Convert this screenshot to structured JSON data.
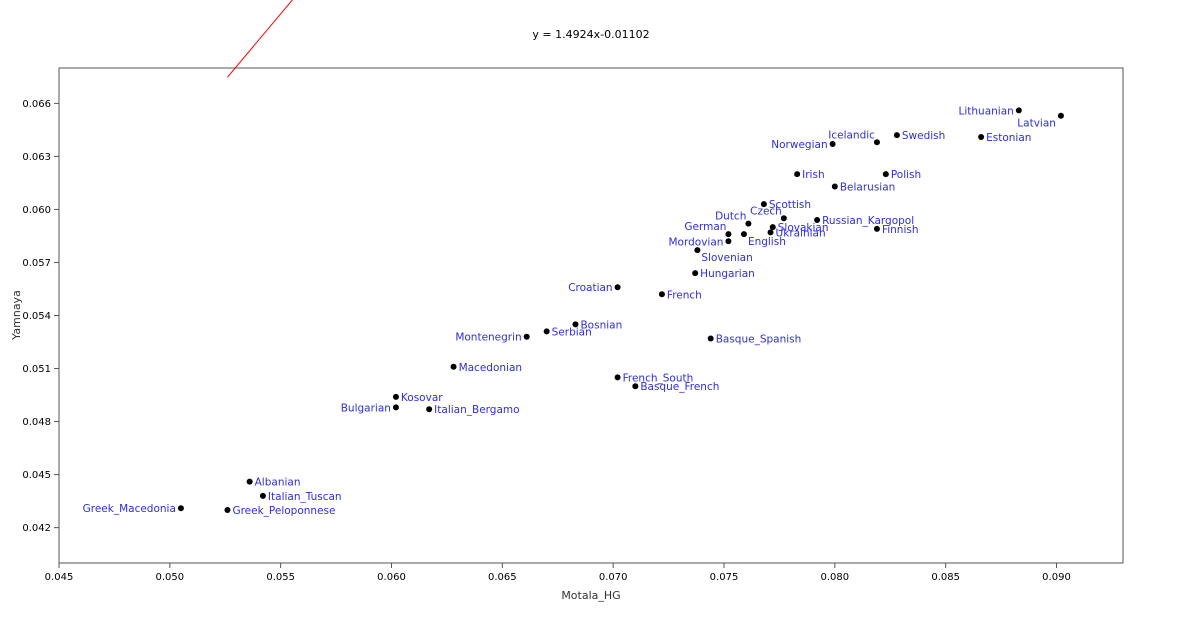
{
  "chart_data": {
    "type": "scatter",
    "title": "y = 1.4924x-0.01102",
    "xlabel": "Motala_HG",
    "ylabel": "Yamnaya",
    "xlim": [
      0.045,
      0.093
    ],
    "ylim": [
      0.04,
      0.068
    ],
    "xticks": [
      "0.045",
      "0.050",
      "0.055",
      "0.060",
      "0.065",
      "0.070",
      "0.075",
      "0.080",
      "0.085",
      "0.090"
    ],
    "yticks": [
      "0.042",
      "0.045",
      "0.048",
      "0.051",
      "0.054",
      "0.057",
      "0.060",
      "0.063",
      "0.066"
    ],
    "grid": false,
    "trendline": {
      "slope": 1.4924,
      "intercept": -0.01102,
      "x_range": [
        0.0526,
        0.0883
      ],
      "color": "#ff0000"
    },
    "marker_color": "#000000",
    "label_color": "#2e2ee0",
    "points": [
      {
        "label": "Lithuanian",
        "x": 0.0883,
        "y": 0.0656,
        "pos": "left"
      },
      {
        "label": "Latvian",
        "x": 0.0902,
        "y": 0.0653,
        "pos": "below-left"
      },
      {
        "label": "Estonian",
        "x": 0.0866,
        "y": 0.0641,
        "pos": "right"
      },
      {
        "label": "Swedish",
        "x": 0.0828,
        "y": 0.0642,
        "pos": "right"
      },
      {
        "label": "Icelandic",
        "x": 0.0819,
        "y": 0.0638,
        "pos": "above-left"
      },
      {
        "label": "Norwegian",
        "x": 0.0799,
        "y": 0.0637,
        "pos": "left"
      },
      {
        "label": "Irish",
        "x": 0.0783,
        "y": 0.062,
        "pos": "right"
      },
      {
        "label": "Polish",
        "x": 0.0823,
        "y": 0.062,
        "pos": "right"
      },
      {
        "label": "Belarusian",
        "x": 0.08,
        "y": 0.0613,
        "pos": "right"
      },
      {
        "label": "Scottish",
        "x": 0.0768,
        "y": 0.0603,
        "pos": "right"
      },
      {
        "label": "Czech",
        "x": 0.0777,
        "y": 0.0595,
        "pos": "above-left"
      },
      {
        "label": "Dutch",
        "x": 0.0761,
        "y": 0.0592,
        "pos": "above-left"
      },
      {
        "label": "Russian_Kargopol",
        "x": 0.0792,
        "y": 0.0594,
        "pos": "right"
      },
      {
        "label": "Slovakian",
        "x": 0.0772,
        "y": 0.059,
        "pos": "right"
      },
      {
        "label": "Finnish",
        "x": 0.0819,
        "y": 0.0589,
        "pos": "right"
      },
      {
        "label": "German",
        "x": 0.0752,
        "y": 0.0586,
        "pos": "above-left"
      },
      {
        "label": "Ukrainian",
        "x": 0.0771,
        "y": 0.0587,
        "pos": "right"
      },
      {
        "label": "English",
        "x": 0.0759,
        "y": 0.0586,
        "pos": "below-right"
      },
      {
        "label": "Mordovian",
        "x": 0.0752,
        "y": 0.0582,
        "pos": "left"
      },
      {
        "label": "Slovenian",
        "x": 0.0738,
        "y": 0.0577,
        "pos": "below-right"
      },
      {
        "label": "Hungarian",
        "x": 0.0737,
        "y": 0.0564,
        "pos": "right"
      },
      {
        "label": "Croatian",
        "x": 0.0702,
        "y": 0.0556,
        "pos": "left"
      },
      {
        "label": "French",
        "x": 0.0722,
        "y": 0.0552,
        "pos": "right"
      },
      {
        "label": "Bosnian",
        "x": 0.0683,
        "y": 0.0535,
        "pos": "right"
      },
      {
        "label": "Serbian",
        "x": 0.067,
        "y": 0.0531,
        "pos": "right"
      },
      {
        "label": "Montenegrin",
        "x": 0.0661,
        "y": 0.0528,
        "pos": "left"
      },
      {
        "label": "Basque_Spanish",
        "x": 0.0744,
        "y": 0.0527,
        "pos": "right"
      },
      {
        "label": "Macedonian",
        "x": 0.0628,
        "y": 0.0511,
        "pos": "right"
      },
      {
        "label": "French_South",
        "x": 0.0702,
        "y": 0.0505,
        "pos": "right"
      },
      {
        "label": "Basque_French",
        "x": 0.071,
        "y": 0.05,
        "pos": "right"
      },
      {
        "label": "Kosovar",
        "x": 0.0602,
        "y": 0.0494,
        "pos": "right"
      },
      {
        "label": "Bulgarian",
        "x": 0.0602,
        "y": 0.0488,
        "pos": "left"
      },
      {
        "label": "Italian_Bergamo",
        "x": 0.0617,
        "y": 0.0487,
        "pos": "right"
      },
      {
        "label": "Albanian",
        "x": 0.0536,
        "y": 0.0446,
        "pos": "right"
      },
      {
        "label": "Italian_Tuscan",
        "x": 0.0542,
        "y": 0.0438,
        "pos": "right"
      },
      {
        "label": "Greek_Macedonia",
        "x": 0.0505,
        "y": 0.0431,
        "pos": "left"
      },
      {
        "label": "Greek_Peloponnese",
        "x": 0.0526,
        "y": 0.043,
        "pos": "right"
      }
    ]
  }
}
